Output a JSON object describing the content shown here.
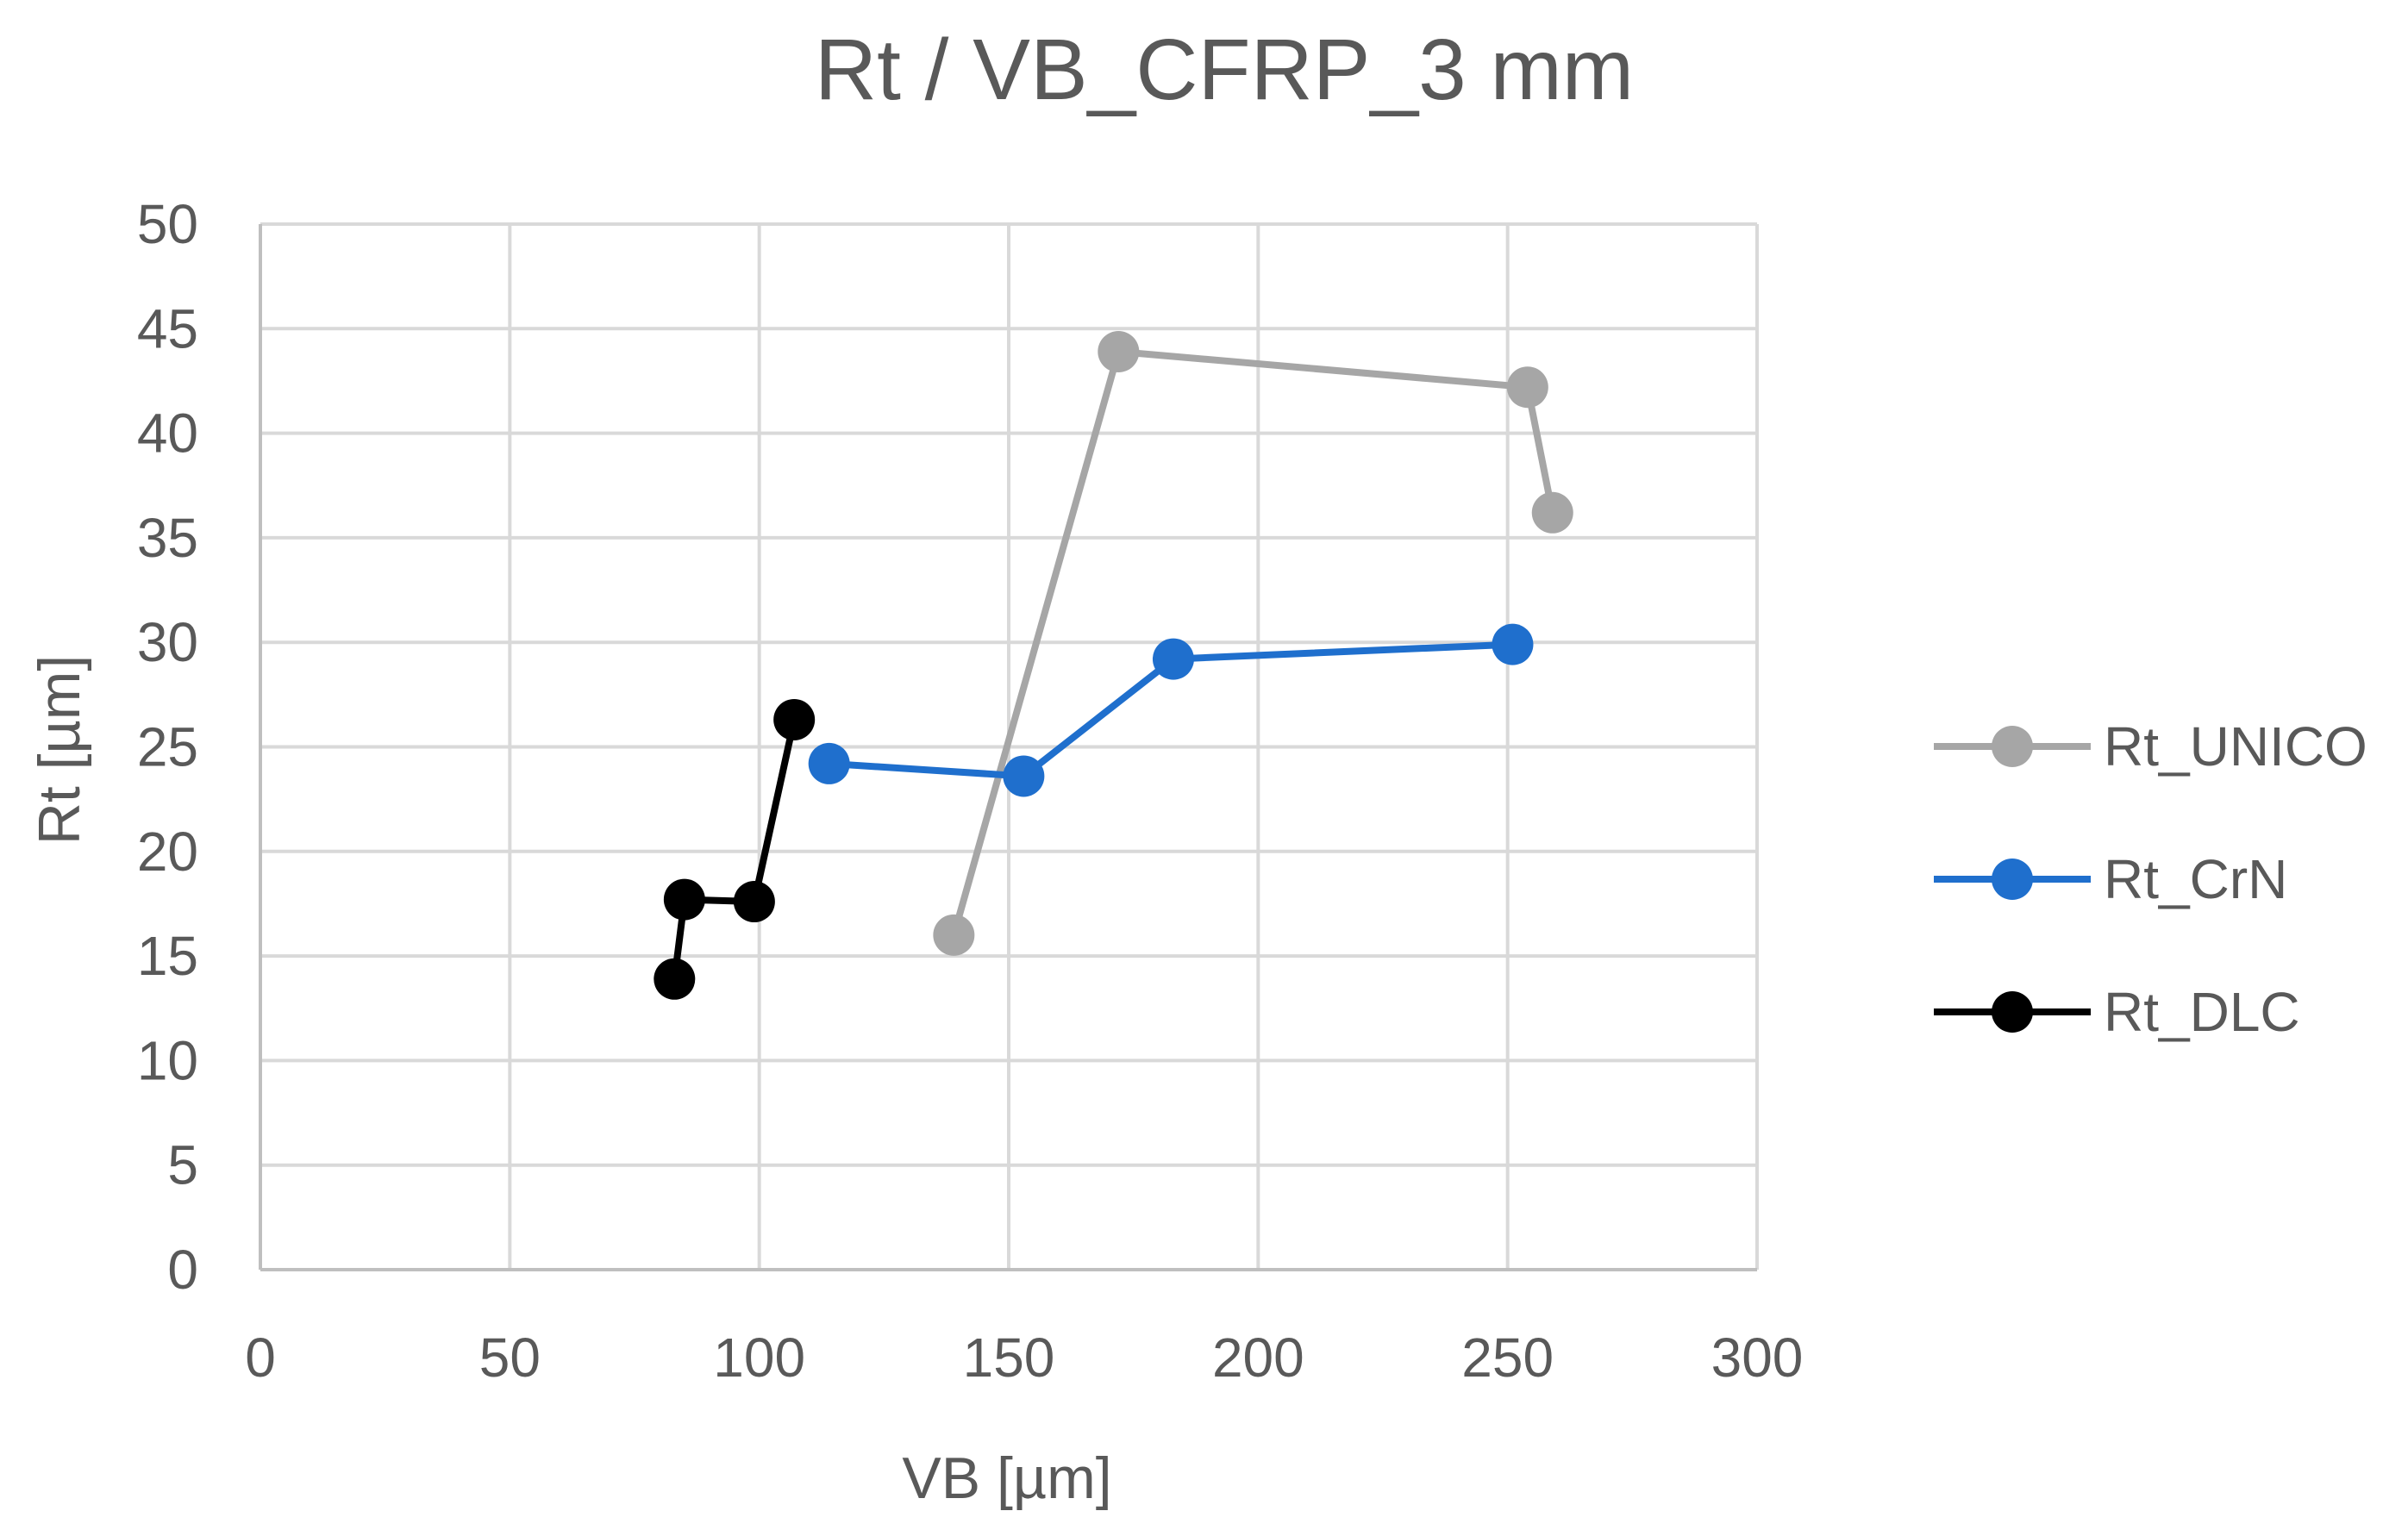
{
  "chart_data": {
    "type": "scatter",
    "title": "Rt / VB_CFRP_3  mm",
    "xlabel": "VB [µm]",
    "ylabel": "Rt [µm]",
    "xlim": [
      0,
      300
    ],
    "ylim": [
      0,
      50
    ],
    "xticks": [
      "0",
      "50",
      "100",
      "150",
      "200",
      "250",
      "300"
    ],
    "yticks": [
      "0",
      "5",
      "10",
      "15",
      "20",
      "25",
      "30",
      "35",
      "40",
      "45",
      "50"
    ],
    "grid": true,
    "legend_position": "right",
    "lines_connect_points": true,
    "series": [
      {
        "name": "Rt_UNICO",
        "color": "#a6a6a6",
        "points": [
          {
            "x": 139,
            "y": 16.0
          },
          {
            "x": 172,
            "y": 43.9
          },
          {
            "x": 254,
            "y": 42.2
          },
          {
            "x": 259,
            "y": 36.2
          }
        ]
      },
      {
        "name": "Rt_CrN",
        "color": "#1f6fcd",
        "points": [
          {
            "x": 114,
            "y": 24.2
          },
          {
            "x": 153,
            "y": 23.6
          },
          {
            "x": 183,
            "y": 29.2
          },
          {
            "x": 251,
            "y": 29.9
          }
        ]
      },
      {
        "name": "Rt_DLC",
        "color": "#000000",
        "points": [
          {
            "x": 83,
            "y": 13.9
          },
          {
            "x": 85,
            "y": 17.7
          },
          {
            "x": 99,
            "y": 17.6
          },
          {
            "x": 107,
            "y": 26.3
          }
        ]
      }
    ]
  }
}
